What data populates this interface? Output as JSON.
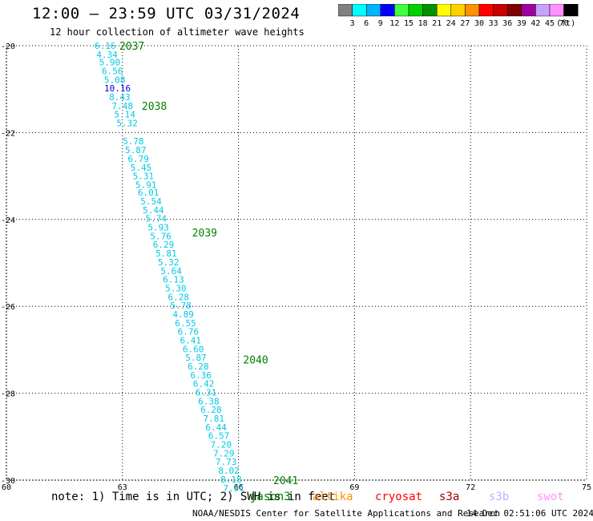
{
  "header": {
    "title": "12:00 – 23:59 UTC 03/31/2024",
    "subtitle": "12 hour collection of altimeter wave heights"
  },
  "legend": {
    "unit": "(ft)",
    "bins": [
      {
        "label": "3",
        "color": "#808080"
      },
      {
        "label": "6",
        "color": "#00ffff"
      },
      {
        "label": "9",
        "color": "#00b4ff"
      },
      {
        "label": "12",
        "color": "#0000ff"
      },
      {
        "label": "15",
        "color": "#40ff40"
      },
      {
        "label": "18",
        "color": "#00d000"
      },
      {
        "label": "21",
        "color": "#009000"
      },
      {
        "label": "24",
        "color": "#ffff00"
      },
      {
        "label": "27",
        "color": "#ffd000"
      },
      {
        "label": "30",
        "color": "#ff9000"
      },
      {
        "label": "33",
        "color": "#ff0000"
      },
      {
        "label": "36",
        "color": "#c80000"
      },
      {
        "label": "39",
        "color": "#800000"
      },
      {
        "label": "42",
        "color": "#a000a0"
      },
      {
        "label": "45",
        "color": "#c8a0ff"
      },
      {
        "label": "70",
        "color": "#ff90ff"
      },
      {
        "label": "",
        "color": "#000000"
      }
    ]
  },
  "map": {
    "lon_range": [
      60,
      75
    ],
    "lat_range": [
      -30,
      -20
    ],
    "x_ticks": [
      "60",
      "63",
      "66",
      "69",
      "72",
      "75"
    ],
    "y_ticks": [
      "-20",
      "-22",
      "-24",
      "-26",
      "-28",
      "-30"
    ],
    "gridlines": true
  },
  "chart_data": {
    "type": "scatter",
    "label_color_cyan": "#00c8e6",
    "label_color_blue": "#0000e6",
    "time_label_color": "#008000",
    "points": [
      {
        "lon": 62.55,
        "lat": -20.0,
        "v": "6.16"
      },
      {
        "lon": 62.6,
        "lat": -20.2,
        "v": "4.34"
      },
      {
        "lon": 62.67,
        "lat": -20.38,
        "v": "5.90"
      },
      {
        "lon": 62.74,
        "lat": -20.58,
        "v": "6.56"
      },
      {
        "lon": 62.8,
        "lat": -20.78,
        "v": "5.08"
      },
      {
        "lon": 62.87,
        "lat": -20.98,
        "v": "10.16"
      },
      {
        "lon": 62.93,
        "lat": -21.18,
        "v": "8.43"
      },
      {
        "lon": 63.0,
        "lat": -21.38,
        "v": "7.48"
      },
      {
        "lon": 63.06,
        "lat": -21.58,
        "v": "5.14"
      },
      {
        "lon": 63.12,
        "lat": -21.78,
        "v": "5.32"
      },
      {
        "lon": 63.28,
        "lat": -22.2,
        "v": "5.78"
      },
      {
        "lon": 63.34,
        "lat": -22.4,
        "v": "5.87"
      },
      {
        "lon": 63.41,
        "lat": -22.6,
        "v": "6.79"
      },
      {
        "lon": 63.48,
        "lat": -22.8,
        "v": "5.45"
      },
      {
        "lon": 63.54,
        "lat": -23.0,
        "v": "5.31"
      },
      {
        "lon": 63.61,
        "lat": -23.2,
        "v": "5.91"
      },
      {
        "lon": 63.67,
        "lat": -23.38,
        "v": "6.01"
      },
      {
        "lon": 63.74,
        "lat": -23.58,
        "v": "5.54"
      },
      {
        "lon": 63.8,
        "lat": -23.78,
        "v": "5.44"
      },
      {
        "lon": 63.87,
        "lat": -23.98,
        "v": "5.74"
      },
      {
        "lon": 63.93,
        "lat": -24.18,
        "v": "5.93"
      },
      {
        "lon": 63.99,
        "lat": -24.38,
        "v": "5.76"
      },
      {
        "lon": 64.06,
        "lat": -24.58,
        "v": "6.29"
      },
      {
        "lon": 64.13,
        "lat": -24.78,
        "v": "5.81"
      },
      {
        "lon": 64.19,
        "lat": -24.98,
        "v": "5.32"
      },
      {
        "lon": 64.26,
        "lat": -25.18,
        "v": "5.64"
      },
      {
        "lon": 64.32,
        "lat": -25.38,
        "v": "6.13"
      },
      {
        "lon": 64.38,
        "lat": -25.58,
        "v": "5.30"
      },
      {
        "lon": 64.45,
        "lat": -25.78,
        "v": "6.28"
      },
      {
        "lon": 64.51,
        "lat": -25.98,
        "v": "5.78"
      },
      {
        "lon": 64.57,
        "lat": -26.18,
        "v": "4.89"
      },
      {
        "lon": 64.63,
        "lat": -26.38,
        "v": "6.55"
      },
      {
        "lon": 64.7,
        "lat": -26.58,
        "v": "6.76"
      },
      {
        "lon": 64.76,
        "lat": -26.78,
        "v": "6.41"
      },
      {
        "lon": 64.83,
        "lat": -26.98,
        "v": "6.60"
      },
      {
        "lon": 64.9,
        "lat": -27.18,
        "v": "5.87"
      },
      {
        "lon": 64.96,
        "lat": -27.38,
        "v": "6.28"
      },
      {
        "lon": 65.03,
        "lat": -27.58,
        "v": "6.36"
      },
      {
        "lon": 65.1,
        "lat": -27.78,
        "v": "6.42"
      },
      {
        "lon": 65.16,
        "lat": -27.98,
        "v": "6.31"
      },
      {
        "lon": 65.23,
        "lat": -28.18,
        "v": "6.38"
      },
      {
        "lon": 65.29,
        "lat": -28.38,
        "v": "6.28"
      },
      {
        "lon": 65.36,
        "lat": -28.58,
        "v": "7.81"
      },
      {
        "lon": 65.42,
        "lat": -28.78,
        "v": "6.44"
      },
      {
        "lon": 65.49,
        "lat": -28.98,
        "v": "6.57"
      },
      {
        "lon": 65.55,
        "lat": -29.18,
        "v": "7.20"
      },
      {
        "lon": 65.62,
        "lat": -29.38,
        "v": "7.29"
      },
      {
        "lon": 65.68,
        "lat": -29.58,
        "v": "7.73"
      },
      {
        "lon": 65.75,
        "lat": -29.78,
        "v": "8.02"
      },
      {
        "lon": 65.81,
        "lat": -29.98,
        "v": "8.18"
      },
      {
        "lon": 65.88,
        "lat": -30.18,
        "v": "7.51"
      }
    ],
    "time_labels": [
      {
        "lon": 62.92,
        "lat": -20.0,
        "t": "2037"
      },
      {
        "lon": 63.5,
        "lat": -21.38,
        "t": "2038"
      },
      {
        "lon": 64.8,
        "lat": -24.3,
        "t": "2039"
      },
      {
        "lon": 66.12,
        "lat": -27.22,
        "t": "2040"
      },
      {
        "lon": 66.9,
        "lat": -30.0,
        "t": "2041"
      }
    ]
  },
  "footer": {
    "note": "note: 1) Time is in UTC; 2) SWH is in feet",
    "satellites": [
      {
        "name": "jason3",
        "color": "#008000"
      },
      {
        "name": "altika",
        "color": "#ff9000"
      },
      {
        "name": "cryosat",
        "color": "#ff0000"
      },
      {
        "name": "s3a",
        "color": "#a00000"
      },
      {
        "name": "s3b",
        "color": "#c0b0ff"
      },
      {
        "name": "swot",
        "color": "#ff90ff"
      }
    ],
    "credit": "NOAA/NESDIS Center for Satellite Applications and Research",
    "timestamp": "14 Dec 02:51:06 UTC 2024"
  }
}
